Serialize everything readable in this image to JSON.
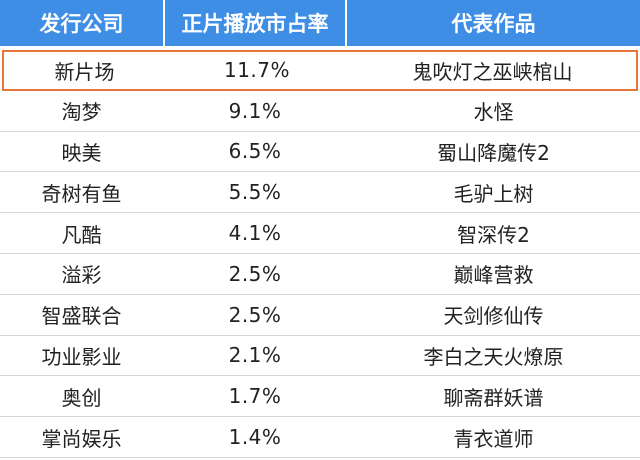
{
  "header": {
    "col1": "发行公司",
    "col2": "正片播放市占率",
    "col3": "代表作品"
  },
  "rows": [
    {
      "company": "新片场",
      "share": "11.7%",
      "work": "鬼吹灯之巫峡棺山",
      "highlight": true
    },
    {
      "company": "淘梦",
      "share": "9.1%",
      "work": "水怪"
    },
    {
      "company": "映美",
      "share": "6.5%",
      "work": "蜀山降魔传2"
    },
    {
      "company": "奇树有鱼",
      "share": "5.5%",
      "work": "毛驴上树"
    },
    {
      "company": "凡酷",
      "share": "4.1%",
      "work": "智深传2"
    },
    {
      "company": "溢彩",
      "share": "2.5%",
      "work": "巅峰营救"
    },
    {
      "company": "智盛联合",
      "share": "2.5%",
      "work": "天剑修仙传"
    },
    {
      "company": "功业影业",
      "share": "2.1%",
      "work": "李白之天火燎原"
    },
    {
      "company": "奥创",
      "share": "1.7%",
      "work": "聊斋群妖谱"
    },
    {
      "company": "掌尚娱乐",
      "share": "1.4%",
      "work": "青衣道师"
    }
  ],
  "colors": {
    "header_bg": "#3f8ee6",
    "highlight_border": "#e8763a"
  }
}
